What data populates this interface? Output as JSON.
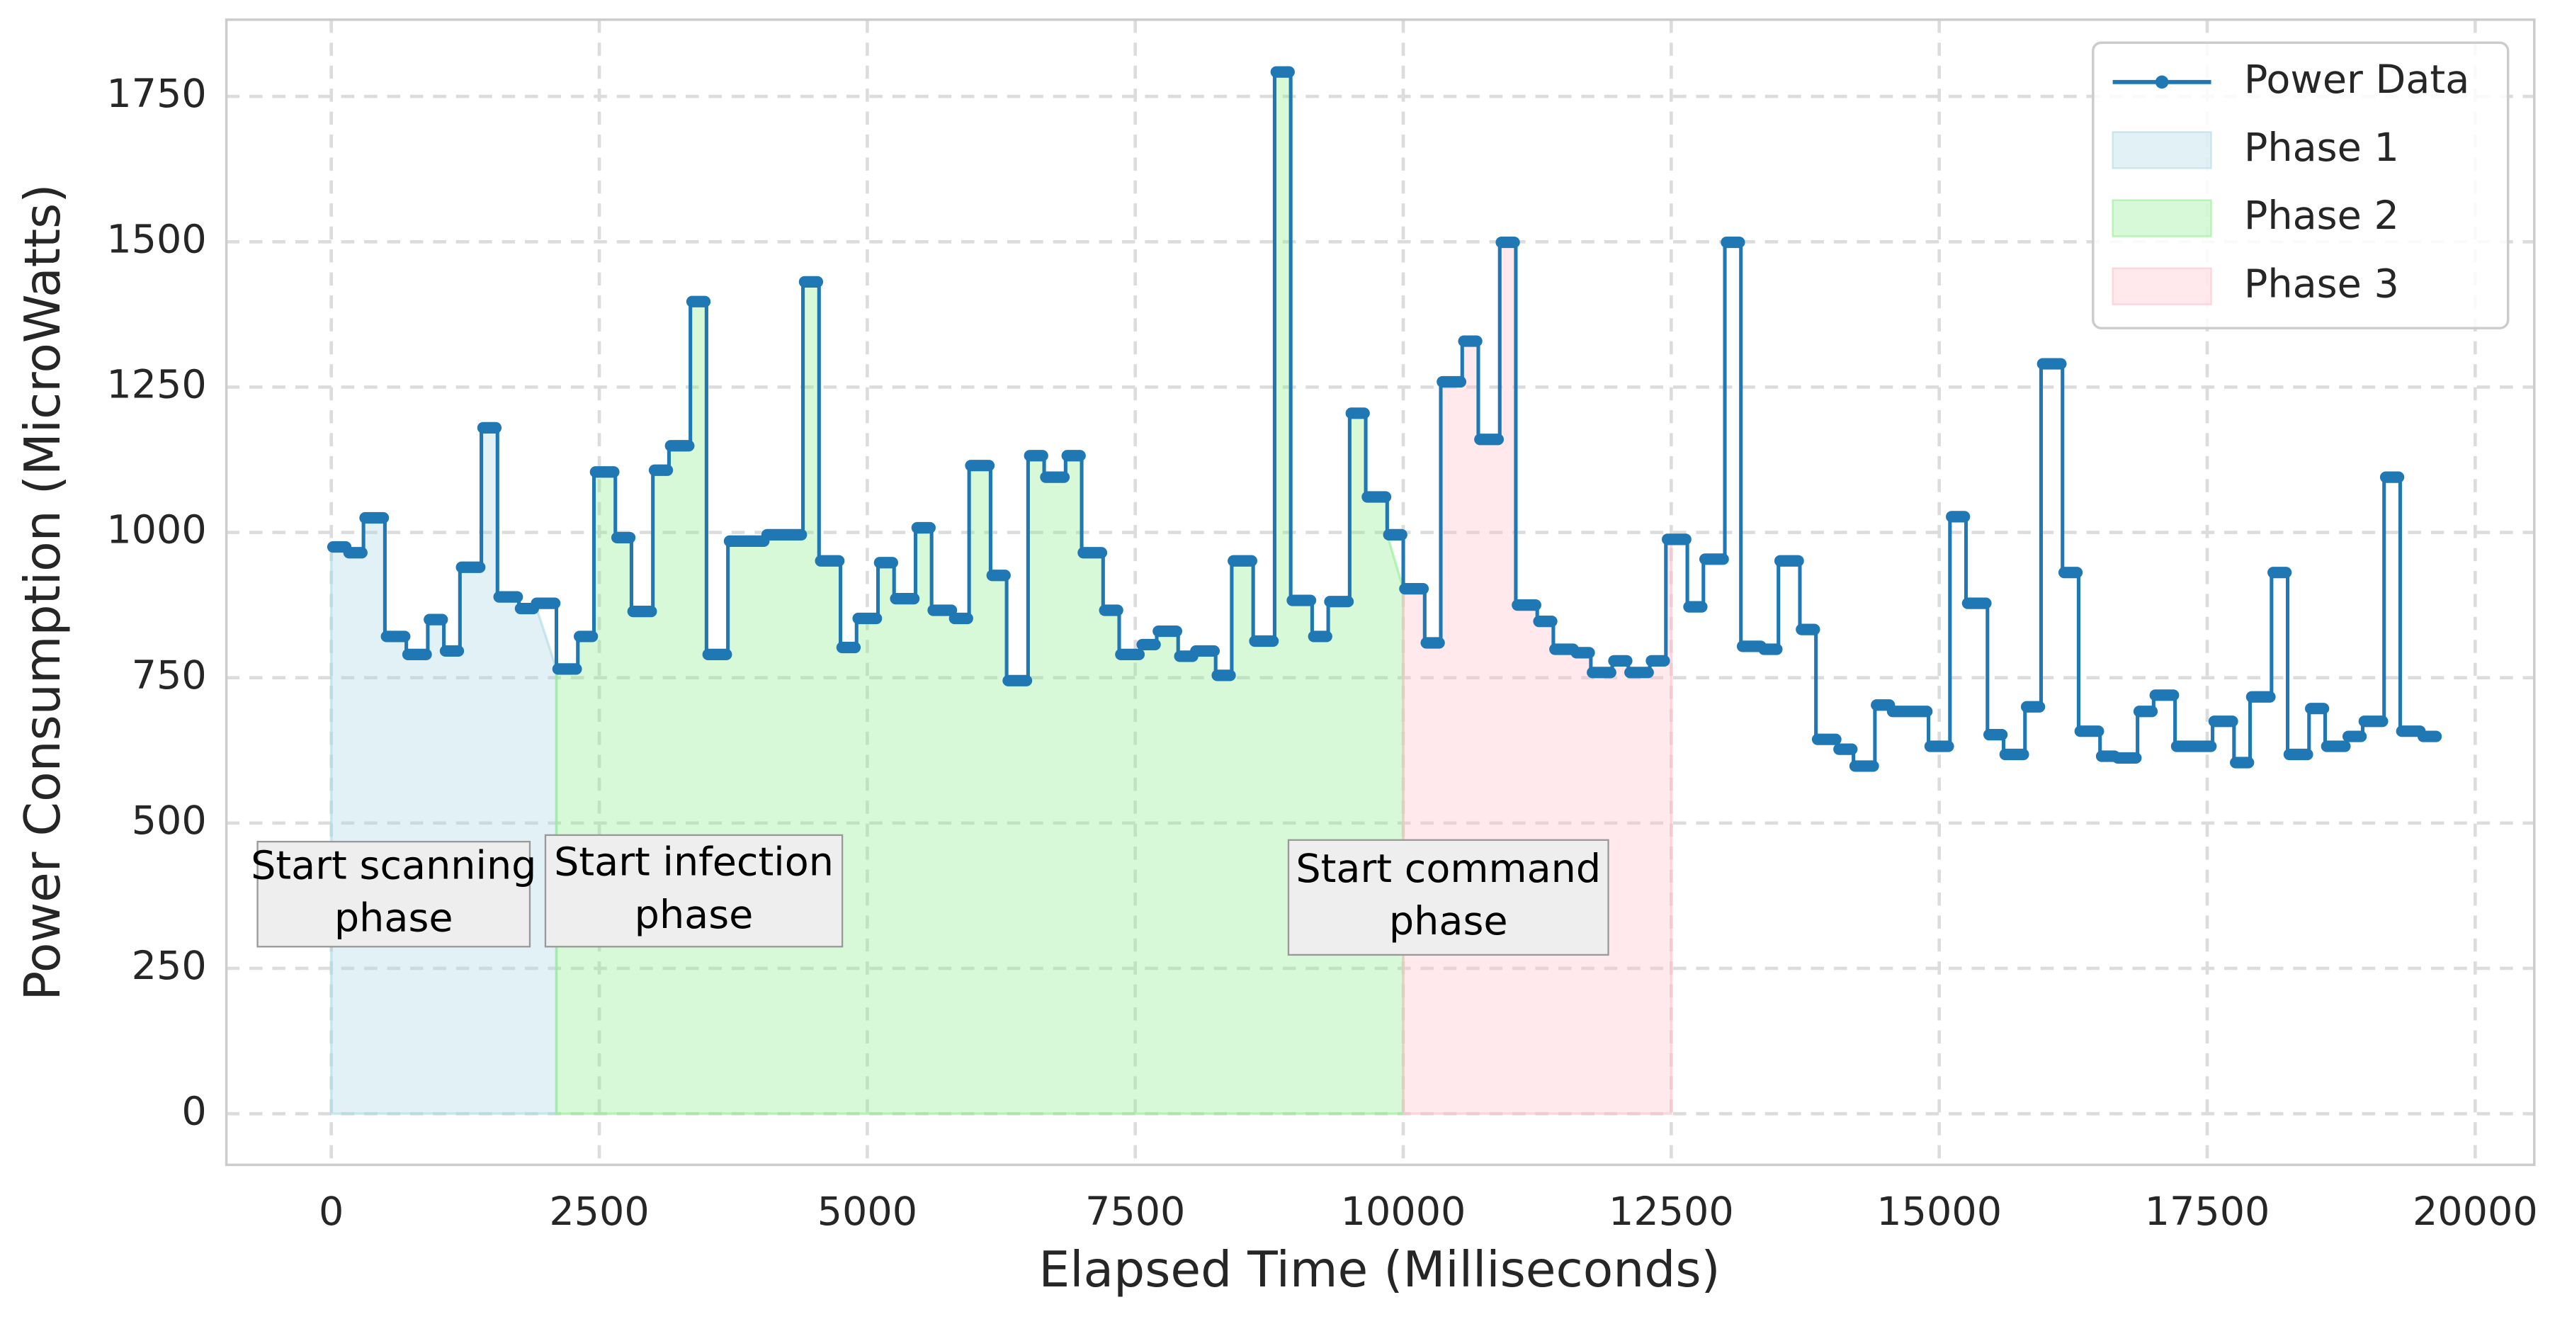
{
  "chart_data": {
    "type": "line",
    "xlabel": "Elapsed Time (Milliseconds)",
    "ylabel": "Power Consumption (MicroWatts)",
    "drawstyle": "steps-post",
    "x": [
      0,
      150,
      300,
      500,
      700,
      900,
      1050,
      1200,
      1400,
      1550,
      1750,
      1900,
      2100,
      2300,
      2450,
      2650,
      2800,
      3000,
      3150,
      3350,
      3500,
      3700,
      4050,
      4400,
      4550,
      4750,
      4900,
      5100,
      5250,
      5450,
      5600,
      5800,
      5950,
      6150,
      6300,
      6500,
      6650,
      6850,
      7000,
      7200,
      7350,
      7550,
      7700,
      7900,
      8050,
      8250,
      8400,
      8600,
      8800,
      8950,
      9150,
      9300,
      9500,
      9650,
      9850,
      10000,
      10200,
      10350,
      10550,
      10700,
      10900,
      11050,
      11250,
      11400,
      11600,
      11750,
      11950,
      12100,
      12300,
      12450,
      12650,
      12800,
      13000,
      13150,
      13350,
      13500,
      13700,
      13850,
      14050,
      14200,
      14400,
      14550,
      14900,
      15100,
      15250,
      15450,
      15600,
      15800,
      15950,
      16150,
      16300,
      16500,
      16650,
      16850,
      17000,
      17200,
      17550,
      17750,
      17900,
      18100,
      18250,
      18450,
      18600,
      18800,
      18950,
      19150,
      19300,
      19500
    ],
    "series": [
      {
        "name": "Power Data",
        "color": "#1f77b4",
        "values": [
          975,
          965,
          1025,
          821,
          790,
          850,
          796,
          940,
          1180,
          889,
          869,
          878,
          765,
          821,
          1104,
          991,
          864,
          1107,
          1149,
          1397,
          790,
          985,
          996,
          1431,
          951,
          802,
          852,
          948,
          886,
          1008,
          866,
          852,
          1115,
          926,
          745,
          1132,
          1095,
          1132,
          965,
          866,
          790,
          807,
          830,
          787,
          796,
          754,
          951,
          813,
          1792,
          883,
          821,
          881,
          1205,
          1061,
          996,
          903,
          810,
          1259,
          1329,
          1160,
          1499,
          875,
          847,
          799,
          793,
          759,
          779,
          759,
          779,
          988,
          872,
          954,
          1499,
          804,
          799,
          951,
          833,
          644,
          627,
          598,
          703,
          692,
          632,
          1027,
          878,
          652,
          618,
          700,
          1290,
          931,
          658,
          615,
          612,
          692,
          720,
          632,
          675,
          604,
          717,
          931,
          618,
          697,
          632,
          649,
          675,
          1095,
          658,
          649
        ]
      }
    ],
    "phases": [
      {
        "name": "Phase 1",
        "color": "#add8e6",
        "range": [
          0,
          2100
        ]
      },
      {
        "name": "Phase 2",
        "color": "#90ee90",
        "range": [
          2100,
          10000
        ]
      },
      {
        "name": "Phase 3",
        "color": "#ffc0cb",
        "range": [
          10000,
          12500
        ]
      }
    ],
    "annotations": [
      {
        "lines": [
          "Start scanning",
          "phase"
        ]
      },
      {
        "lines": [
          "Start infection",
          "phase"
        ]
      },
      {
        "lines": [
          "Start command",
          "phase"
        ]
      }
    ],
    "xlim": [
      -979,
      20551
    ],
    "ylim": [
      -88,
      1882
    ],
    "xticks": [
      0,
      2500,
      5000,
      7500,
      10000,
      12500,
      15000,
      17500,
      20000
    ],
    "yticks": [
      0,
      250,
      500,
      750,
      1000,
      1250,
      1500,
      1750
    ],
    "grid": true,
    "legend": "upper right"
  }
}
